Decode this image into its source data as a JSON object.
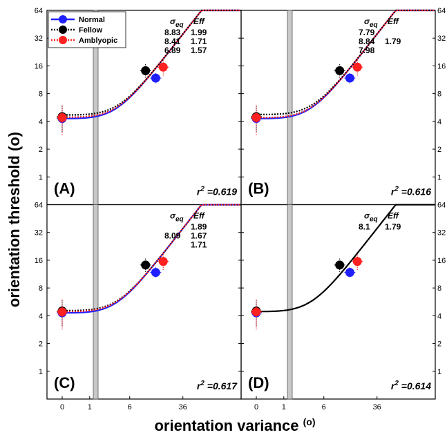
{
  "chart_data": {
    "type": "line",
    "xlabel": "orientation variance",
    "xlabel_unit": "(o)",
    "ylabel": "orientation threshold (o)",
    "y_scale": "log2",
    "ylim": [
      0.5,
      64
    ],
    "y_ticks": [
      1,
      2,
      4,
      8,
      16,
      32,
      64
    ],
    "y_tick_labels": [
      "1",
      "2",
      "4",
      "8",
      "16",
      "32",
      "64"
    ],
    "x_break_note": "0 shown separately; broken axis",
    "x_ticks": [
      0,
      1,
      6,
      36
    ],
    "x_tick_labels": [
      "0",
      "1",
      "6",
      "36"
    ],
    "grid": false,
    "legend_location": "top-left of panel A",
    "series_meta": [
      {
        "name": "Normal",
        "color": "#1f1fff"
      },
      {
        "name": "Fellow",
        "color": "#000000"
      },
      {
        "name": "Amblyopic",
        "color": "#ff2020"
      }
    ],
    "stat_headers": {
      "sigma": "σ",
      "sigma_sub": "eq",
      "eff": "Eff"
    },
    "points": {
      "Normal": {
        "zero_y": 4.3,
        "zero_err": 1.3,
        "high_x": 14.8,
        "high_y": 11.8,
        "high_err": 1.6
      },
      "Fellow": {
        "zero_y": 4.5,
        "zero_err": 1.4,
        "high_x": 10.5,
        "high_y": 14.2,
        "high_err": 2.5
      },
      "Amblyopic": {
        "zero_y": 4.4,
        "zero_err": 1.6,
        "high_x": 19.0,
        "high_y": 15.5,
        "high_err": 3.0
      }
    },
    "panels": [
      {
        "label": "(A)",
        "r2": "0.619",
        "sigma_eq": [
          "8.83",
          "8.41",
          "6.89"
        ],
        "eff": [
          "1.99",
          "1.71",
          "1.57"
        ],
        "curves": [
          {
            "series": "Normal",
            "floor": 4.3
          },
          {
            "series": "Fellow",
            "floor": 4.7
          },
          {
            "series": "Amblyopic",
            "floor": 4.45
          }
        ]
      },
      {
        "label": "(B)",
        "r2": "0.616",
        "sigma_eq": [
          "7.79",
          "8.84",
          "7.98"
        ],
        "eff": [
          "",
          "1.79",
          ""
        ],
        "curves": [
          {
            "series": "Normal",
            "floor": 4.3
          },
          {
            "series": "Fellow",
            "floor": 4.75
          },
          {
            "series": "Amblyopic",
            "floor": 4.4
          }
        ]
      },
      {
        "label": "(C)",
        "r2": "0.617",
        "sigma_eq": [
          "",
          "8.09",
          ""
        ],
        "eff": [
          "1.89",
          "1.67",
          "1.71"
        ],
        "curves": [
          {
            "series": "Normal",
            "floor": 4.3
          },
          {
            "series": "Fellow",
            "floor": 4.55
          },
          {
            "series": "Amblyopic",
            "floor": 4.45
          }
        ]
      },
      {
        "label": "(D)",
        "r2": "0.614",
        "sigma_eq": [
          "8.1"
        ],
        "eff": [
          "1.79"
        ],
        "curves": [
          {
            "series": "Fellow",
            "floor": 4.45
          }
        ]
      }
    ]
  }
}
